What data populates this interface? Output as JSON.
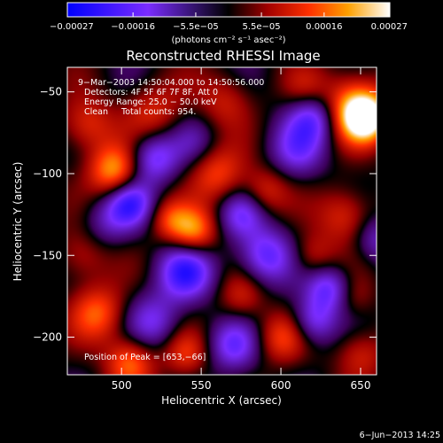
{
  "chart_data": {
    "type": "heatmap",
    "title": "Reconstructed RHESSI Image",
    "xlabel": "Heliocentric X (arcsec)",
    "ylabel": "Heliocentric Y (arcsec)",
    "xlim": [
      466,
      660
    ],
    "ylim": [
      -223,
      -35
    ],
    "xticks": [
      500,
      550,
      600,
      650
    ],
    "xtick_labels": [
      "500",
      "550",
      "600",
      "650"
    ],
    "yticks": [
      -50,
      -100,
      -150,
      -200
    ],
    "ytick_labels": [
      "−50",
      "−100",
      "−150",
      "−200"
    ],
    "colorbar": {
      "range": [
        -0.00027,
        0.00027
      ],
      "ticks": [
        -0.00027,
        -0.00016,
        -5.5e-05,
        5.5e-05,
        0.00016,
        0.00027
      ],
      "tick_labels": [
        "−0.00027",
        "−0.00016",
        "−5.5e−05",
        "5.5e−05",
        "0.00016",
        "0.00027"
      ],
      "label": "(photons cm⁻² s⁻¹ asec⁻²)"
    },
    "annotations": [
      "9−Mar−2003 14:50:04.000 to 14:50:56.000",
      "Detectors: 4F 5F 6F 7F 8F, Att 0",
      "Energy Range: 25.0 − 50.0 keV",
      "Clean     Total counts: 954."
    ],
    "peak_label": "Position of Peak = [653,−66]",
    "peak": {
      "x": 653,
      "y": -66
    },
    "blobs": [
      {
        "x": 653,
        "y": -66,
        "v": 0.00027,
        "s": 10
      },
      {
        "x": 645,
        "y": -58,
        "v": 0.00018,
        "s": 14
      },
      {
        "x": 495,
        "y": -98,
        "v": 0.0002,
        "s": 11
      },
      {
        "x": 478,
        "y": -70,
        "v": 0.00012,
        "s": 12
      },
      {
        "x": 520,
        "y": -62,
        "v": 0.0001,
        "s": 13
      },
      {
        "x": 565,
        "y": -55,
        "v": 9e-05,
        "s": 12
      },
      {
        "x": 615,
        "y": -48,
        "v": 7e-05,
        "s": 10
      },
      {
        "x": 560,
        "y": -100,
        "v": 0.00013,
        "s": 12
      },
      {
        "x": 590,
        "y": -110,
        "v": 0.0001,
        "s": 10
      },
      {
        "x": 545,
        "y": -135,
        "v": 0.00018,
        "s": 10
      },
      {
        "x": 530,
        "y": -128,
        "v": 0.00011,
        "s": 9
      },
      {
        "x": 640,
        "y": -125,
        "v": 0.00012,
        "s": 12
      },
      {
        "x": 620,
        "y": -150,
        "v": 9e-05,
        "s": 10
      },
      {
        "x": 475,
        "y": -150,
        "v": 9e-05,
        "s": 12
      },
      {
        "x": 485,
        "y": -185,
        "v": 0.00015,
        "s": 12
      },
      {
        "x": 505,
        "y": -215,
        "v": 0.00016,
        "s": 11
      },
      {
        "x": 540,
        "y": -210,
        "v": 0.00011,
        "s": 10
      },
      {
        "x": 575,
        "y": -175,
        "v": 9e-05,
        "s": 10
      },
      {
        "x": 600,
        "y": -200,
        "v": 0.00012,
        "s": 11
      },
      {
        "x": 650,
        "y": -210,
        "v": 0.0001,
        "s": 11
      },
      {
        "x": 645,
        "y": -175,
        "v": 6e-05,
        "s": 9
      },
      {
        "x": 520,
        "y": -90,
        "v": -0.00016,
        "s": 11
      },
      {
        "x": 505,
        "y": -118,
        "v": -0.00018,
        "s": 10
      },
      {
        "x": 540,
        "y": -160,
        "v": -0.0002,
        "s": 12
      },
      {
        "x": 590,
        "y": -150,
        "v": -0.00017,
        "s": 12
      },
      {
        "x": 620,
        "y": -65,
        "v": -0.00016,
        "s": 11
      },
      {
        "x": 610,
        "y": -85,
        "v": -0.00012,
        "s": 12
      },
      {
        "x": 630,
        "y": -170,
        "v": -0.00016,
        "s": 10
      },
      {
        "x": 620,
        "y": -190,
        "v": -0.00014,
        "s": 10
      },
      {
        "x": 520,
        "y": -190,
        "v": -0.00012,
        "s": 12
      },
      {
        "x": 570,
        "y": -205,
        "v": -0.00014,
        "s": 11
      },
      {
        "x": 575,
        "y": -125,
        "v": -0.00012,
        "s": 10
      },
      {
        "x": 490,
        "y": -130,
        "v": -8e-05,
        "s": 11
      },
      {
        "x": 660,
        "y": -140,
        "v": -0.0001,
        "s": 10
      },
      {
        "x": 545,
        "y": -80,
        "v": -6e-05,
        "s": 10
      }
    ]
  },
  "footer": {
    "date": "6−Jun−2013 14:25"
  }
}
